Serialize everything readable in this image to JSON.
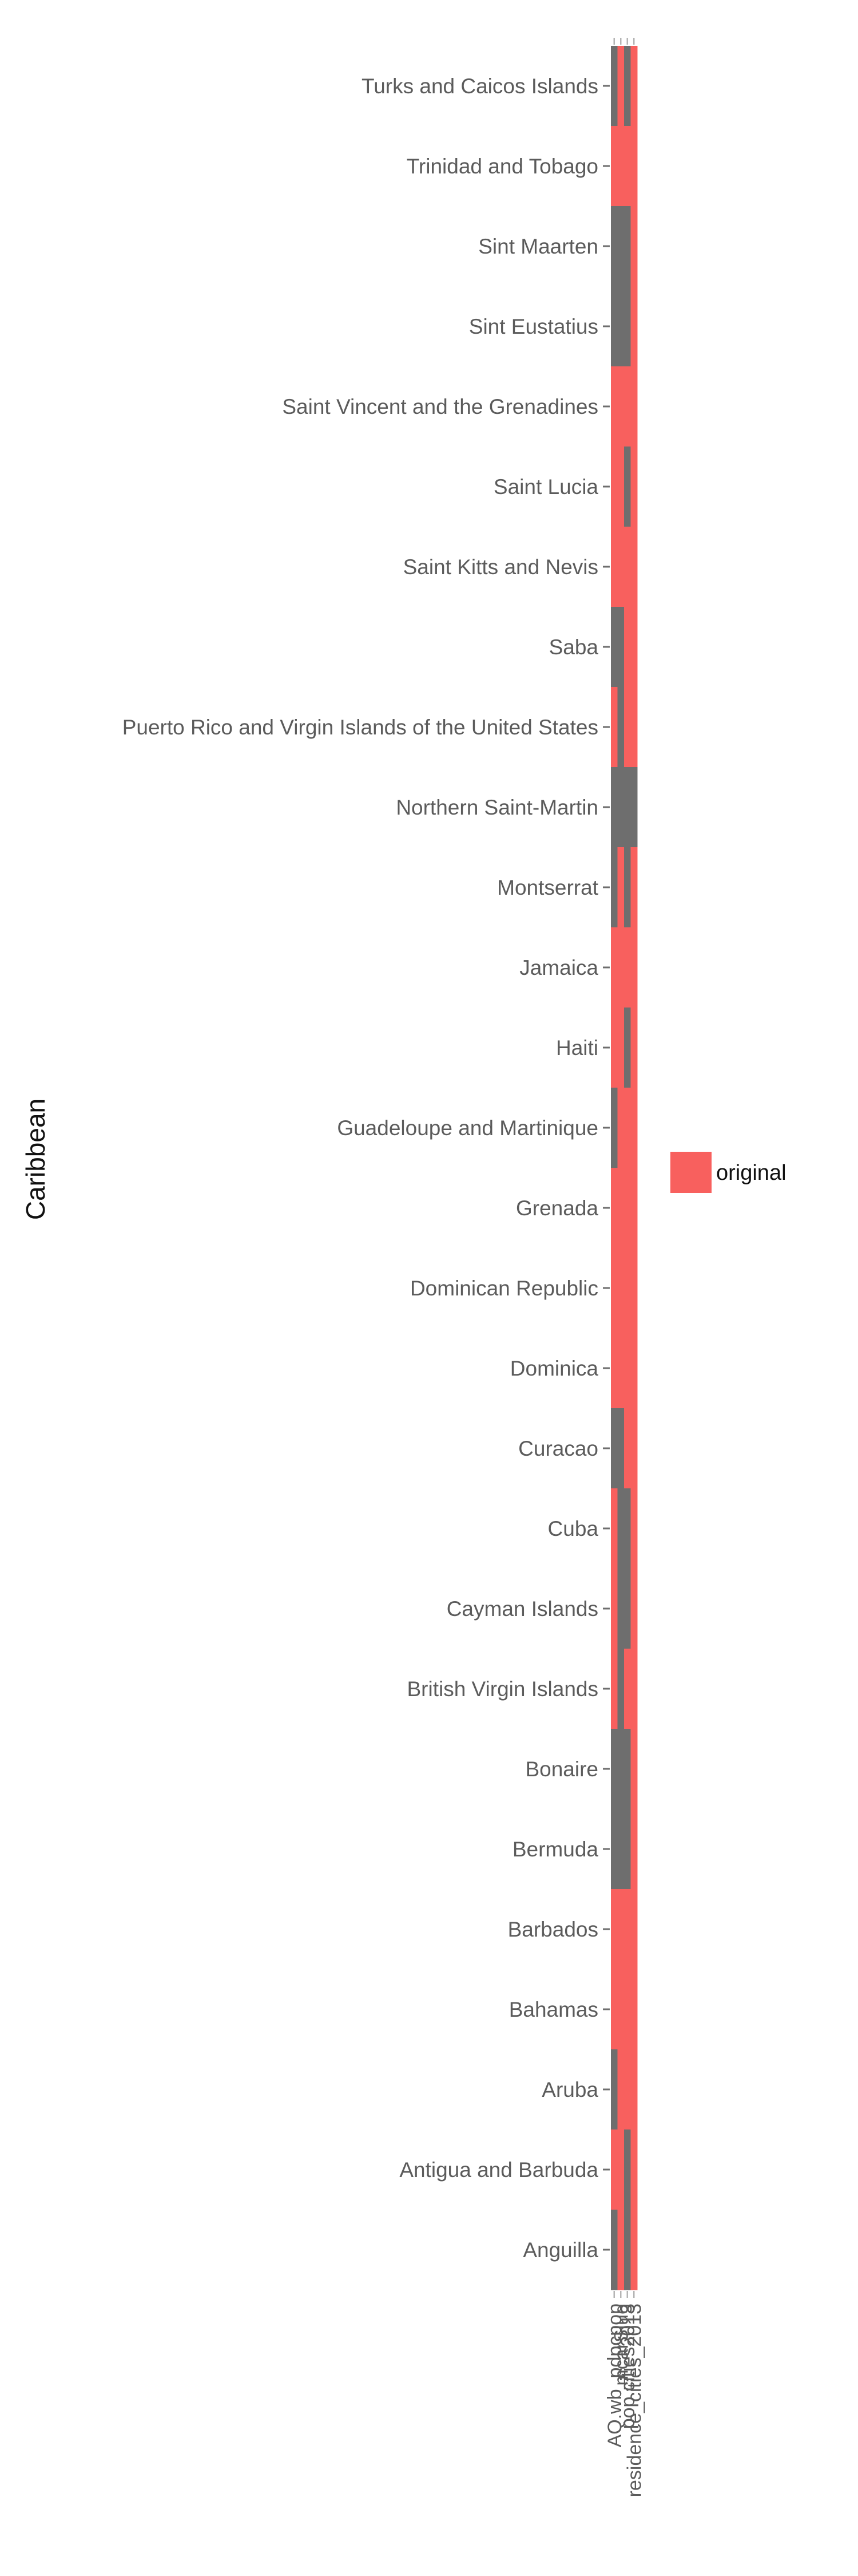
{
  "chart_data": {
    "type": "heatmap",
    "ylabel": "Caribbean",
    "columns": [
      "AQ.wb_pdpcpop",
      "mcarSlug",
      "pop.cities2013",
      "residence_cities_2013"
    ],
    "rows": [
      "Turks and Caicos Islands",
      "Trinidad and Tobago",
      "Sint Maarten",
      "Sint Eustatius",
      "Saint Vincent and the Grenadines",
      "Saint Lucia",
      "Saint Kitts and Nevis",
      "Saba",
      "Puerto Rico and Virgin Islands of the United States",
      "Northern Saint-Martin",
      "Montserrat",
      "Jamaica",
      "Haiti",
      "Guadeloupe and Martinique",
      "Grenada",
      "Dominican Republic",
      "Dominica",
      "Curacao",
      "Cuba",
      "Cayman Islands",
      "British Virgin Islands",
      "Bonaire",
      "Bermuda",
      "Barbados",
      "Bahamas",
      "Aruba",
      "Antigua and Barbuda",
      "Anguilla"
    ],
    "matrix": [
      [
        "missing",
        "original",
        "missing",
        "original"
      ],
      [
        "original",
        "original",
        "original",
        "original"
      ],
      [
        "missing",
        "missing",
        "missing",
        "original"
      ],
      [
        "missing",
        "missing",
        "missing",
        "original"
      ],
      [
        "original",
        "original",
        "original",
        "original"
      ],
      [
        "original",
        "original",
        "missing",
        "original"
      ],
      [
        "original",
        "original",
        "original",
        "original"
      ],
      [
        "missing",
        "missing",
        "original",
        "original"
      ],
      [
        "original",
        "missing",
        "original",
        "original"
      ],
      [
        "missing",
        "missing",
        "missing",
        "missing"
      ],
      [
        "missing",
        "original",
        "missing",
        "original"
      ],
      [
        "original",
        "original",
        "original",
        "original"
      ],
      [
        "original",
        "original",
        "missing",
        "original"
      ],
      [
        "missing",
        "original",
        "original",
        "original"
      ],
      [
        "original",
        "original",
        "original",
        "original"
      ],
      [
        "original",
        "original",
        "original",
        "original"
      ],
      [
        "original",
        "original",
        "original",
        "original"
      ],
      [
        "missing",
        "missing",
        "original",
        "original"
      ],
      [
        "original",
        "missing",
        "missing",
        "original"
      ],
      [
        "original",
        "missing",
        "missing",
        "original"
      ],
      [
        "original",
        "missing",
        "original",
        "original"
      ],
      [
        "missing",
        "missing",
        "missing",
        "original"
      ],
      [
        "missing",
        "missing",
        "missing",
        "original"
      ],
      [
        "original",
        "original",
        "original",
        "original"
      ],
      [
        "original",
        "original",
        "original",
        "original"
      ],
      [
        "missing",
        "original",
        "original",
        "original"
      ],
      [
        "original",
        "original",
        "missing",
        "original"
      ],
      [
        "missing",
        "original",
        "missing",
        "original"
      ]
    ],
    "colors": {
      "original": "#F8605E",
      "missing": "#6E6E6E"
    },
    "legend": {
      "position": "right",
      "entries": [
        {
          "key": "original",
          "label": "original"
        }
      ]
    },
    "grid": false
  }
}
